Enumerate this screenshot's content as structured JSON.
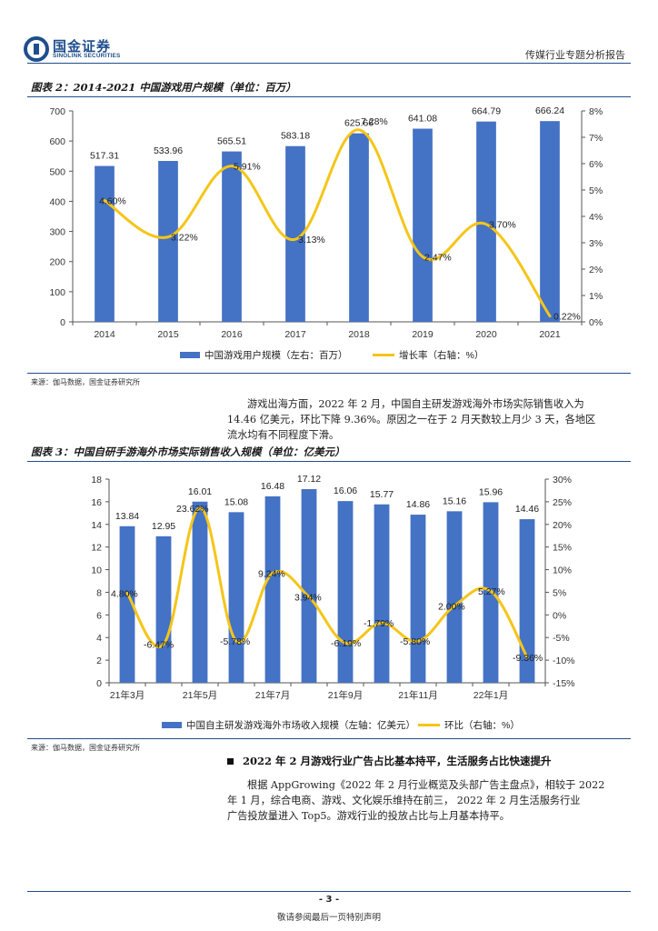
{
  "header": {
    "logo_cn": "国金证券",
    "logo_en": "SINOLINK SECURITIES",
    "report_type": "传媒行业专题分析报告"
  },
  "figure2": {
    "title": "图表 2：2014-2021 中国游戏用户规模（单位：百万）",
    "source": "来源：伽马数据，国金证券研究所"
  },
  "figure3": {
    "title": "图表 3：中国自研手游海外市场实际销售收入规模（单位：亿美元）",
    "source": "来源：伽马数据，国金证券研究所"
  },
  "paragraph1": {
    "line1": "游戏出海方面，2022 年 2 月，中国自主研发游戏海外市场实际销售收入为",
    "line2": "14.46 亿美元，环比下降 9.36%。原因之一在于 2 月天数较上月少 3 天，各地区",
    "line3": "流水均有不同程度下滑。"
  },
  "section": {
    "heading": "2022 年 2 月游戏行业广告占比基本持平，生活服务占比快速提升",
    "line1": "根据 AppGrowing《2022 年 2 月行业概览及头部广告主盘点》，相较于 2022",
    "line2": "年 1 月，综合电商、游戏、文化娱乐维持在前三， 2022 年 2 月生活服务行业",
    "line3": "广告投放量进入 Top5。游戏行业的投放占比与上月基本持平。"
  },
  "footer": {
    "page": "- 3 -",
    "disclaimer": "敬请参阅最后一页特别声明"
  },
  "colors": {
    "brand": "#1f4e8c",
    "bar": "#4472c4",
    "line": "#f5c518"
  },
  "chart_data": [
    {
      "type": "bar",
      "title": "图表 2：2014-2021 中国游戏用户规模（单位：百万）",
      "categories": [
        "2014",
        "2015",
        "2016",
        "2017",
        "2018",
        "2019",
        "2020",
        "2021"
      ],
      "series": [
        {
          "name": "中国游戏用户规模（左右：百万）",
          "type": "bar",
          "axis": "left",
          "values": [
            517.31,
            533.96,
            565.51,
            583.18,
            625.66,
            641.08,
            664.79,
            666.24
          ],
          "labels": [
            "517.31",
            "533.96",
            "565.51",
            "583.18",
            "625.66",
            "641.08",
            "664.79",
            "666.24"
          ]
        },
        {
          "name": "增长率（右轴：%）",
          "type": "line",
          "axis": "right",
          "values": [
            4.6,
            3.22,
            5.91,
            3.13,
            7.28,
            2.47,
            3.7,
            0.22
          ],
          "labels": [
            "4.60%",
            "3.22%",
            "5.91%",
            "3.13%",
            "7.28%",
            "2.47%",
            "3.70%",
            "0.22%"
          ]
        }
      ],
      "ylim_left": [
        0,
        700
      ],
      "yticks_left": [
        0,
        100,
        200,
        300,
        400,
        500,
        600,
        700
      ],
      "ylim_right": [
        0,
        8
      ],
      "yticks_right": [
        "0%",
        "1%",
        "2%",
        "3%",
        "4%",
        "5%",
        "6%",
        "7%",
        "8%"
      ],
      "grid": false,
      "legend": "bottom"
    },
    {
      "type": "bar",
      "title": "图表 3：中国自研手游海外市场实际销售收入规模（单位：亿美元）",
      "categories": [
        "21年3月",
        "21年4月",
        "21年5月",
        "21年6月",
        "21年7月",
        "21年8月",
        "21年9月",
        "21年10月",
        "21年11月",
        "21年12月",
        "22年1月",
        "22年2月"
      ],
      "visible_tick_labels": [
        "21年3月",
        "21年5月",
        "21年7月",
        "21年9月",
        "21年11月",
        "22年1月"
      ],
      "series": [
        {
          "name": "中国自主研发游戏海外市场收入规模（左轴：亿美元）",
          "type": "bar",
          "axis": "left",
          "values": [
            13.84,
            12.95,
            16.01,
            15.08,
            16.48,
            17.12,
            16.06,
            15.77,
            14.86,
            15.16,
            15.96,
            14.46
          ],
          "labels": [
            "13.84",
            "12.95",
            "16.01",
            "15.08",
            "16.48",
            "17.12",
            "16.06",
            "15.77",
            "14.86",
            "15.16",
            "15.96",
            "14.46"
          ]
        },
        {
          "name": "环比（右轴：%）",
          "type": "line",
          "axis": "right",
          "values": [
            4.8,
            -6.47,
            23.62,
            -5.78,
            9.24,
            3.94,
            -6.19,
            -1.79,
            -5.8,
            2.0,
            5.27,
            -9.36
          ],
          "labels": [
            "4.80%",
            "-6.47%",
            "23.62%",
            "-5.78%",
            "9.24%",
            "3.94%",
            "-6.19%",
            "-1.79%",
            "-5.80%",
            "2.00%",
            "5.27%",
            "-9.36%"
          ]
        }
      ],
      "ylim_left": [
        0,
        18
      ],
      "yticks_left": [
        0,
        2,
        4,
        6,
        8,
        10,
        12,
        14,
        16,
        18
      ],
      "ylim_right": [
        -15,
        30
      ],
      "yticks_right": [
        "-15%",
        "-10%",
        "-5%",
        "0%",
        "5%",
        "10%",
        "15%",
        "20%",
        "25%",
        "30%"
      ],
      "grid": false,
      "legend": "bottom"
    }
  ]
}
